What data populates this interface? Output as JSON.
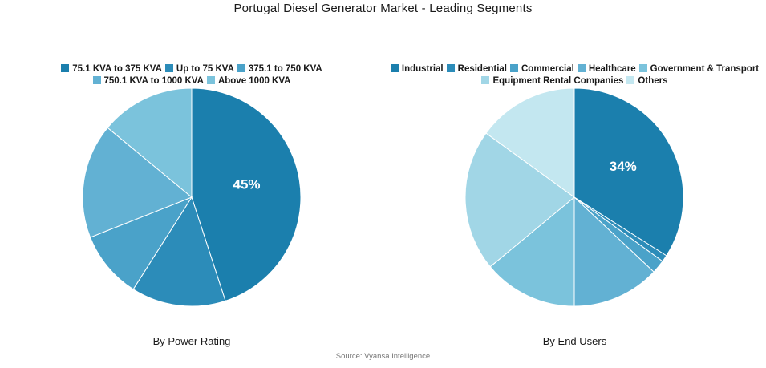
{
  "title": "Portugal Diesel Generator Market - Leading Segments",
  "source": "Source: Vyansa Intelligence",
  "chart_data": [
    {
      "type": "pie",
      "subtitle": "By Power Rating",
      "legend_placement": "top",
      "categories": [
        "75.1 KVA to 375 KVA",
        "Up to 75 KVA",
        "375.1 to 750 KVA",
        "750.1 KVA to 1000 KVA",
        "Above 1000 KVA"
      ],
      "values": [
        45,
        14,
        10,
        17,
        14
      ],
      "colors": [
        "#1b7fad",
        "#2c8cb9",
        "#4aa2c9",
        "#62b1d3",
        "#7bc3dc"
      ],
      "data_labels": [
        "45%",
        "",
        "",
        "",
        ""
      ]
    },
    {
      "type": "pie",
      "subtitle": "By End Users",
      "legend_placement": "top",
      "categories": [
        "Industrial",
        "Residential",
        "Commercial",
        "Healthcare",
        "Government & Transport",
        "Equipment Rental Companies",
        "Others"
      ],
      "values": [
        34,
        1,
        2,
        13,
        14,
        21,
        15
      ],
      "colors": [
        "#1b7fad",
        "#2c8cb9",
        "#4aa2c9",
        "#62b1d3",
        "#7bc3dc",
        "#a1d6e6",
        "#c3e7f0"
      ],
      "data_labels": [
        "34%",
        "",
        "",
        "",
        "",
        "",
        ""
      ]
    }
  ]
}
